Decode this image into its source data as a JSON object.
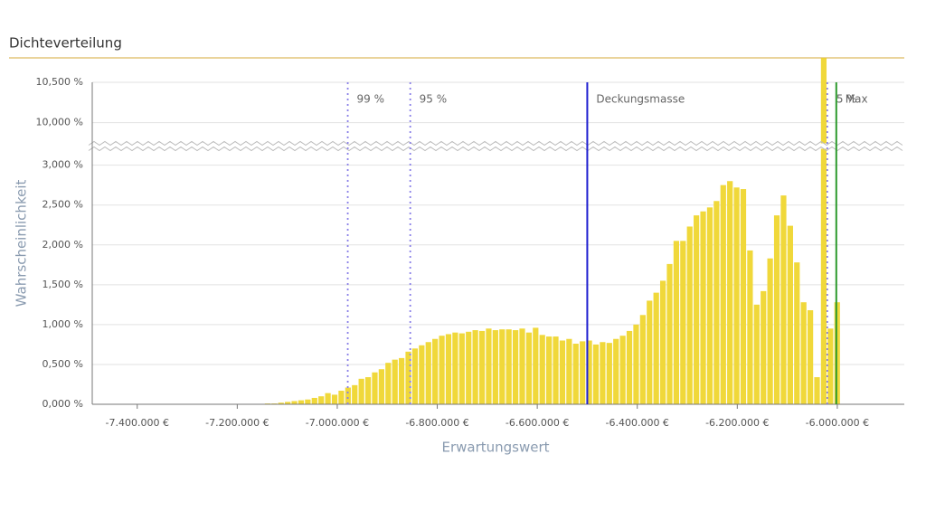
{
  "header": {
    "title": "Dichteverteilung"
  },
  "chart_data": {
    "type": "histogram",
    "xlabel": "Erwartungswert",
    "ylabel": "Wahrscheinlichkeit",
    "color": "#f0d83a",
    "bins": [
      -7146000,
      -7132600,
      -7119200,
      -7105800,
      -7092400,
      -7079000,
      -7065600,
      -7052200,
      -7038800,
      -7025400,
      -7012000,
      -6998600,
      -6985200,
      -6971800,
      -6958400,
      -6945000,
      -6931600,
      -6918200,
      -6904800,
      -6891400,
      -6878000,
      -6864600,
      -6851200,
      -6837800,
      -6824400,
      -6811000,
      -6797600,
      -6784200,
      -6770800,
      -6757400,
      -6744000,
      -6730600,
      -6717200,
      -6703800,
      -6690400,
      -6677000,
      -6663600,
      -6650200,
      -6636800,
      -6623400,
      -6610000,
      -6596600,
      -6583200,
      -6569800,
      -6556400,
      -6543000,
      -6529600,
      -6516200,
      -6502800,
      -6489400,
      -6476000,
      -6462600,
      -6449200,
      -6435800,
      -6422400,
      -6409000,
      -6395600,
      -6382200,
      -6368800,
      -6355400,
      -6342000,
      -6328600,
      -6315200,
      -6301800,
      -6288400,
      -6275000,
      -6261600,
      -6248200,
      -6234800,
      -6221400,
      -6208000,
      -6194600,
      -6181200,
      -6167800,
      -6154400,
      -6141000,
      -6127600,
      -6114200,
      -6100800,
      -6087400,
      -6074000,
      -6060600,
      -6047200,
      -6033800,
      -6020400,
      -6007000,
      -5993600
    ],
    "values": [
      0.01,
      0.01,
      0.02,
      0.03,
      0.04,
      0.05,
      0.06,
      0.08,
      0.1,
      0.14,
      0.12,
      0.17,
      0.21,
      0.24,
      0.32,
      0.34,
      0.4,
      0.44,
      0.52,
      0.56,
      0.58,
      0.66,
      0.7,
      0.74,
      0.78,
      0.82,
      0.86,
      0.88,
      0.9,
      0.89,
      0.91,
      0.93,
      0.92,
      0.95,
      0.93,
      0.94,
      0.94,
      0.93,
      0.95,
      0.9,
      0.96,
      0.87,
      0.85,
      0.85,
      0.8,
      0.82,
      0.76,
      0.79,
      0.8,
      0.75,
      0.78,
      0.77,
      0.82,
      0.86,
      0.92,
      1.0,
      1.12,
      1.3,
      1.4,
      1.55,
      1.76,
      2.05,
      2.05,
      2.23,
      2.37,
      2.42,
      2.47,
      2.55,
      2.75,
      2.8,
      2.72,
      2.7,
      1.93,
      1.25,
      1.42,
      1.83,
      2.37,
      2.62,
      2.24,
      1.78,
      1.28,
      1.18,
      0.34,
      10.8,
      0.95,
      1.28
    ],
    "xlim": [
      -7490000,
      -5866000
    ],
    "xticks": [
      {
        "value": -7400000,
        "label": "-7.400.000 €"
      },
      {
        "value": -7200000,
        "label": "-7.200.000 €"
      },
      {
        "value": -7000000,
        "label": "-7.000.000 €"
      },
      {
        "value": -6800000,
        "label": "-6.800.000 €"
      },
      {
        "value": -6600000,
        "label": "-6.600.000 €"
      },
      {
        "value": -6400000,
        "label": "-6.400.000 €"
      },
      {
        "value": -6200000,
        "label": "-6.200.000 €"
      },
      {
        "value": -6000000,
        "label": "-6.000.000 €"
      }
    ],
    "ylim": [
      0,
      10.5
    ],
    "y_break": [
      3.2,
      9.75
    ],
    "yticks": [
      {
        "value": 0,
        "label": "0,000 %"
      },
      {
        "value": 0.5,
        "label": "0,500 %"
      },
      {
        "value": 1,
        "label": "1,000 %"
      },
      {
        "value": 1.5,
        "label": "1,500 %"
      },
      {
        "value": 2,
        "label": "2,000 %"
      },
      {
        "value": 2.5,
        "label": "2,500 %"
      },
      {
        "value": 3,
        "label": "3,000 %"
      },
      {
        "value": 10,
        "label": "10,000 %"
      },
      {
        "value": 10.5,
        "label": "10,500 %"
      }
    ],
    "grid": true,
    "markers": [
      {
        "label": "99 %",
        "value": -6979000,
        "color": "#8a80e8",
        "style": "dotted"
      },
      {
        "label": "95 %",
        "value": -6854000,
        "color": "#8a80e8",
        "style": "dotted"
      },
      {
        "label": "Deckungsmasse",
        "value": -6500000,
        "color": "#2020d0",
        "style": "solid"
      },
      {
        "label": "5 %",
        "value": -6020000,
        "color": "#8a80e8",
        "style": "dotted"
      },
      {
        "label": "Max",
        "value": -6002000,
        "color": "#2e9a2e",
        "style": "solid"
      }
    ]
  }
}
